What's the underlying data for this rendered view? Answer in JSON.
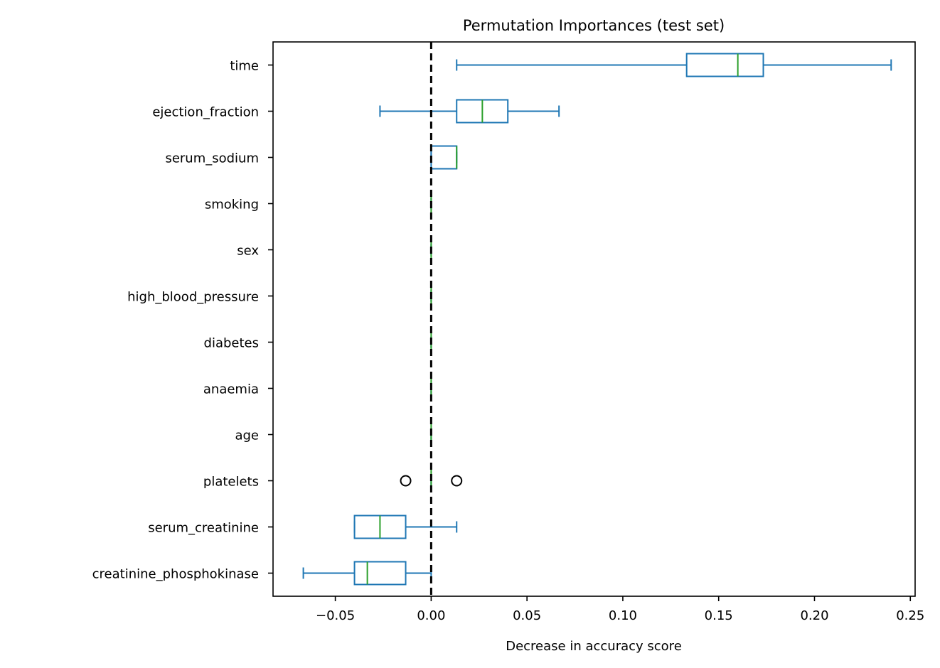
{
  "chart_data": {
    "type": "box",
    "orientation": "horizontal",
    "title": "Permutation Importances (test set)",
    "xlabel": "Decrease in accuracy score",
    "ylabel": "",
    "xlim": [
      -0.0825,
      0.2525
    ],
    "xticks": [
      -0.05,
      0.0,
      0.05,
      0.1,
      0.15,
      0.2,
      0.25
    ],
    "xtick_labels": [
      "−0.05",
      "0.00",
      "0.05",
      "0.10",
      "0.15",
      "0.20",
      "0.25"
    ],
    "grid": false,
    "reference_line": {
      "x": 0.0,
      "style": "dashed",
      "color": "#000000"
    },
    "colors": {
      "box": "#1f77b4",
      "median": "#2ca02c",
      "flier": "#000000"
    },
    "categories": [
      "time",
      "ejection_fraction",
      "serum_sodium",
      "smoking",
      "sex",
      "high_blood_pressure",
      "diabetes",
      "anaemia",
      "age",
      "platelets",
      "serum_creatinine",
      "creatinine_phosphokinase"
    ],
    "boxes": [
      {
        "label": "time",
        "whislo": 0.0133,
        "q1": 0.1333,
        "med": 0.16,
        "q3": 0.1733,
        "whishi": 0.24,
        "fliers": []
      },
      {
        "label": "ejection_fraction",
        "whislo": -0.0267,
        "q1": 0.0133,
        "med": 0.0267,
        "q3": 0.04,
        "whishi": 0.0667,
        "fliers": []
      },
      {
        "label": "serum_sodium",
        "whislo": 0.0,
        "q1": 0.0,
        "med": 0.0133,
        "q3": 0.0133,
        "whishi": 0.0133,
        "fliers": []
      },
      {
        "label": "smoking",
        "whislo": 0.0,
        "q1": 0.0,
        "med": 0.0,
        "q3": 0.0,
        "whishi": 0.0,
        "fliers": []
      },
      {
        "label": "sex",
        "whislo": 0.0,
        "q1": 0.0,
        "med": 0.0,
        "q3": 0.0,
        "whishi": 0.0,
        "fliers": []
      },
      {
        "label": "high_blood_pressure",
        "whislo": 0.0,
        "q1": 0.0,
        "med": 0.0,
        "q3": 0.0,
        "whishi": 0.0,
        "fliers": []
      },
      {
        "label": "diabetes",
        "whislo": 0.0,
        "q1": 0.0,
        "med": 0.0,
        "q3": 0.0,
        "whishi": 0.0,
        "fliers": []
      },
      {
        "label": "anaemia",
        "whislo": 0.0,
        "q1": 0.0,
        "med": 0.0,
        "q3": 0.0,
        "whishi": 0.0,
        "fliers": []
      },
      {
        "label": "age",
        "whislo": 0.0,
        "q1": 0.0,
        "med": 0.0,
        "q3": 0.0,
        "whishi": 0.0,
        "fliers": []
      },
      {
        "label": "platelets",
        "whislo": 0.0,
        "q1": 0.0,
        "med": 0.0,
        "q3": 0.0,
        "whishi": 0.0,
        "fliers": [
          -0.0133,
          0.0133
        ]
      },
      {
        "label": "serum_creatinine",
        "whislo": -0.04,
        "q1": -0.04,
        "med": -0.0267,
        "q3": -0.0133,
        "whishi": 0.0133,
        "fliers": []
      },
      {
        "label": "creatinine_phosphokinase",
        "whislo": -0.0667,
        "q1": -0.04,
        "med": -0.0333,
        "q3": -0.0133,
        "whishi": 0.0,
        "fliers": []
      }
    ]
  }
}
